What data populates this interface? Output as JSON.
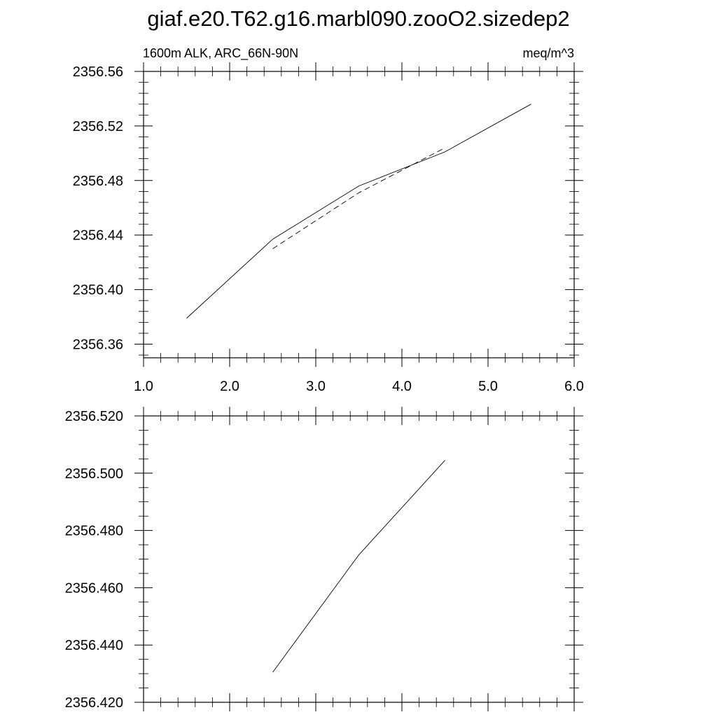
{
  "title": "giaf.e20.T62.g16.marbl090.zooO2.sizedep2",
  "chart_data": [
    {
      "type": "line",
      "subtitle_left": "1600m ALK, ARC_66N-90N",
      "subtitle_right": "meq/m^3",
      "xlim": [
        1.0,
        6.0
      ],
      "ylim": [
        2356.35,
        2356.56
      ],
      "xticks": [
        1.0,
        2.0,
        3.0,
        4.0,
        5.0,
        6.0
      ],
      "xtick_labels": [
        "1.0",
        "2.0",
        "3.0",
        "4.0",
        "5.0",
        "6.0"
      ],
      "yticks": [
        2356.36,
        2356.4,
        2356.44,
        2356.48,
        2356.52,
        2356.56
      ],
      "ytick_labels": [
        "2356.36",
        "2356.40",
        "2356.44",
        "2356.48",
        "2356.52",
        "2356.56"
      ],
      "grid": false,
      "series": [
        {
          "style": "solid",
          "x": [
            1.5,
            2.5,
            3.5,
            4.5,
            5.5
          ],
          "y": [
            2356.379,
            2356.437,
            2356.476,
            2356.501,
            2356.536
          ]
        },
        {
          "style": "dashed",
          "x": [
            2.5,
            3.5,
            4.5
          ],
          "y": [
            2356.43,
            2356.471,
            2356.504
          ]
        }
      ]
    },
    {
      "type": "line",
      "xlim": [
        1.0,
        6.0
      ],
      "ylim": [
        2356.42,
        2356.52
      ],
      "xticks": [
        1.0,
        2.0,
        3.0,
        4.0,
        5.0,
        6.0
      ],
      "yticks": [
        2356.42,
        2356.44,
        2356.46,
        2356.48,
        2356.5,
        2356.52
      ],
      "ytick_labels": [
        "2356.420",
        "2356.440",
        "2356.460",
        "2356.480",
        "2356.500",
        "2356.520"
      ],
      "grid": false,
      "series": [
        {
          "style": "solid",
          "x": [
            2.5,
            3.5,
            4.5
          ],
          "y": [
            2356.4305,
            2356.4715,
            2356.5045
          ]
        }
      ]
    }
  ]
}
